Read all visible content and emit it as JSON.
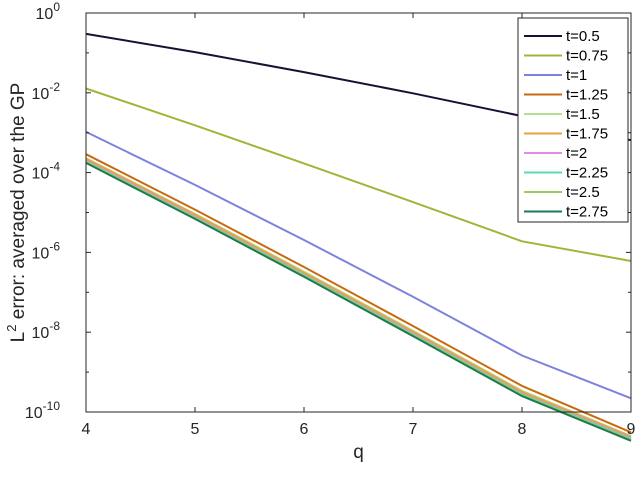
{
  "chart_data": {
    "type": "line",
    "title": "",
    "xlabel": "q",
    "ylabel": {
      "base": "L",
      "superscript": "2",
      "text": " error: averaged over the GP"
    },
    "xscale": "linear",
    "yscale": "log",
    "xlim": [
      4,
      9
    ],
    "ylim": [
      1e-10,
      1
    ],
    "xticks": [
      4,
      5,
      6,
      7,
      8,
      9
    ],
    "yticks": [
      {
        "base": "10",
        "exp": "0",
        "value": 1
      },
      {
        "base": "10",
        "exp": "-2",
        "value": 0.01
      },
      {
        "base": "10",
        "exp": "-4",
        "value": 0.0001
      },
      {
        "base": "10",
        "exp": "-6",
        "value": 1e-06
      },
      {
        "base": "10",
        "exp": "-8",
        "value": 1e-08
      },
      {
        "base": "10",
        "exp": "-10",
        "value": 1e-10
      }
    ],
    "grid": false,
    "legend_position": "top-right",
    "series": [
      {
        "name": "t=0.5",
        "color": "#1a1033",
        "x": [
          4,
          5,
          6,
          7,
          8,
          9
        ],
        "y": [
          0.3,
          0.105,
          0.033,
          0.0097,
          0.0026,
          0.00065
        ]
      },
      {
        "name": "t=0.75",
        "color": "#a2b43a",
        "x": [
          4,
          5,
          6,
          7,
          8,
          9
        ],
        "y": [
          0.0128,
          0.00153,
          0.00017,
          1.82e-05,
          1.9e-06,
          6.1e-07
        ]
      },
      {
        "name": "t=1",
        "color": "#7d82dd",
        "x": [
          4,
          5,
          6,
          7,
          8,
          9
        ],
        "y": [
          0.00105,
          4.92e-05,
          2.05e-06,
          7.7e-08,
          2.6e-09,
          2.2e-10
        ]
      },
      {
        "name": "t=1.25",
        "color": "#c86a10",
        "x": [
          4,
          5,
          6,
          7,
          8,
          9
        ],
        "y": [
          0.00029,
          1.18e-05,
          4.3e-07,
          1.43e-08,
          4.5e-10,
          3.1e-11
        ]
      },
      {
        "name": "t=1.5",
        "color": "#b3e08a",
        "x": [
          4,
          5,
          6,
          7,
          8,
          9
        ],
        "y": [
          0.00023,
          9.2e-06,
          3.3e-07,
          1.09e-08,
          3.4e-10,
          2.5e-11
        ]
      },
      {
        "name": "t=1.75",
        "color": "#e8a23c",
        "x": [
          4,
          5,
          6,
          7,
          8,
          9
        ],
        "y": [
          0.00022,
          8.8e-06,
          3.1e-07,
          1.03e-08,
          3.2e-10,
          2.4e-11
        ]
      },
      {
        "name": "t=2",
        "color": "#e68ae6",
        "x": [
          4,
          5,
          6,
          7,
          8,
          9
        ],
        "y": [
          0.0002,
          7.9e-06,
          2.8e-07,
          9.3e-09,
          2.9e-10,
          2.2e-11
        ]
      },
      {
        "name": "t=2.25",
        "color": "#52dcb4",
        "x": [
          4,
          5,
          6,
          7,
          8,
          9
        ],
        "y": [
          0.00019,
          7.5e-06,
          2.7e-07,
          8.8e-09,
          2.8e-10,
          2.1e-11
        ]
      },
      {
        "name": "t=2.5",
        "color": "#9ccc5c",
        "x": [
          4,
          5,
          6,
          7,
          8,
          9
        ],
        "y": [
          0.000185,
          7.3e-06,
          2.6e-07,
          8.5e-09,
          2.7e-10,
          2e-11
        ]
      },
      {
        "name": "t=2.75",
        "color": "#1c7a54",
        "x": [
          4,
          5,
          6,
          7,
          8,
          9
        ],
        "y": [
          0.000175,
          6.9e-06,
          2.45e-07,
          8e-09,
          2.5e-10,
          1.9e-11
        ]
      }
    ]
  }
}
